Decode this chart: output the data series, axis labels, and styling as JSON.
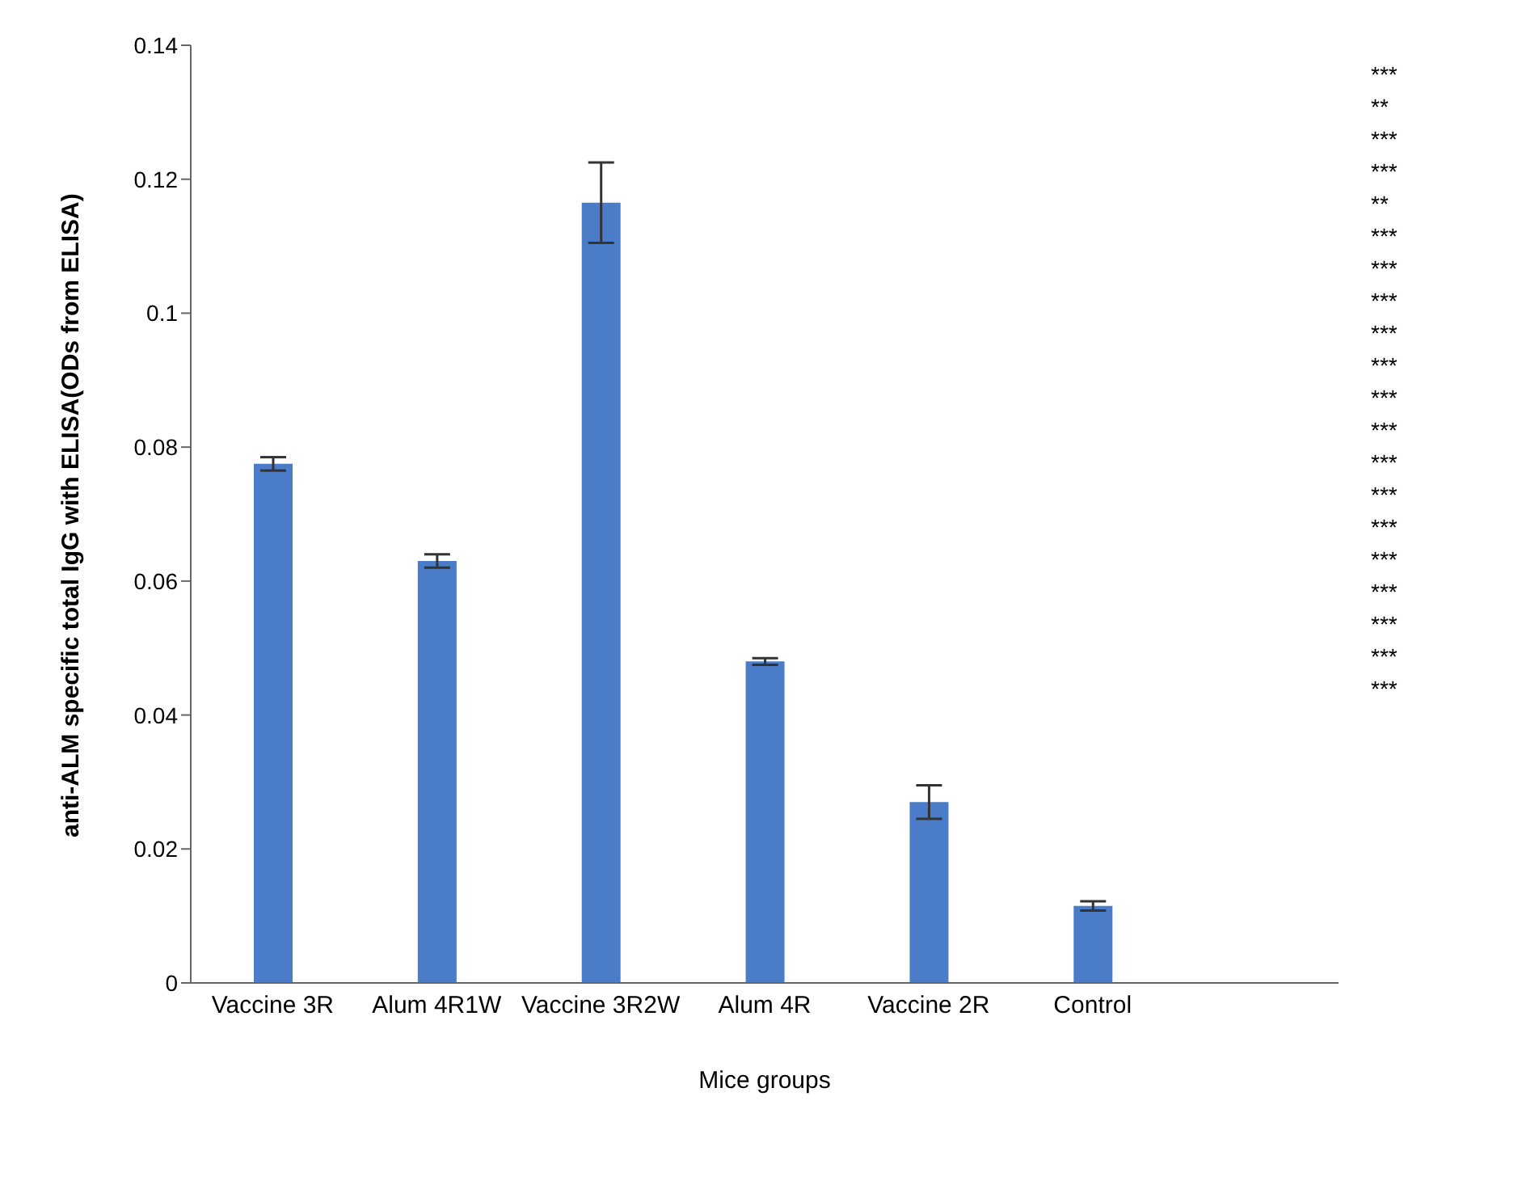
{
  "chart_data": {
    "type": "bar",
    "xlabel": "Mice groups",
    "ylabel": "anti-ALM specific total IgG with ELISA(ODs from ELISA)",
    "categories": [
      "Vaccine 3R",
      "Alum 4R1W",
      "Vaccine 3R2W",
      "Alum 4R",
      "Vaccine 2R",
      "Control",
      null
    ],
    "values": [
      0.0775,
      0.063,
      0.1165,
      0.048,
      0.027,
      0.0115,
      null
    ],
    "errors": [
      0.001,
      0.001,
      0.006,
      0.0005,
      0.0025,
      0.0007,
      null
    ],
    "color": "#4a7cc7",
    "ylim": [
      0,
      0.14
    ],
    "yticks": [
      0,
      0.02,
      0.04,
      0.06,
      0.08,
      0.1,
      0.12,
      0.14
    ],
    "grid": false,
    "legend": false,
    "annotations": [
      "***",
      "**",
      "***",
      "***",
      "**",
      "***",
      "***",
      "***",
      "***",
      "***",
      "***",
      "***",
      "***",
      "***",
      "***",
      "***",
      "***",
      "***",
      "***",
      "***"
    ]
  }
}
